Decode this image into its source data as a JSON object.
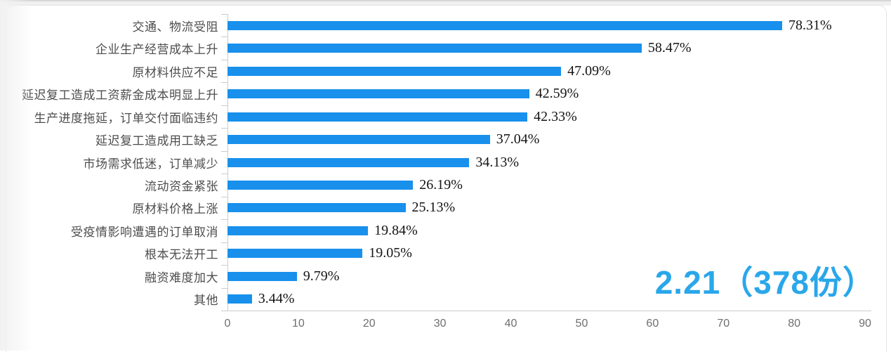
{
  "chart_data": {
    "type": "bar",
    "orientation": "horizontal",
    "title": "",
    "xlabel": "",
    "ylabel": "",
    "xlim": [
      0,
      90
    ],
    "x_ticks": [
      0,
      10,
      20,
      30,
      40,
      50,
      60,
      70,
      80,
      90
    ],
    "grid": false,
    "legend": "none",
    "categories": [
      "交通、物流受阻",
      "企业生产经营成本上升",
      "原材料供应不足",
      "延迟复工造成工资薪金成本明显上升",
      "生产进度拖延，订单交付面临违约",
      "延迟复工造成用工缺乏",
      "市场需求低迷，订单减少",
      "流动资金紧张",
      "原材料价格上涨",
      "受疫情影响遭遇的订单取消",
      "根本无法开工",
      "融资难度加大",
      "其他"
    ],
    "values": [
      78.31,
      58.47,
      47.09,
      42.59,
      42.33,
      37.04,
      34.13,
      26.19,
      25.13,
      19.84,
      19.05,
      9.79,
      3.44
    ],
    "value_labels": [
      "78.31%",
      "58.47%",
      "47.09%",
      "42.59%",
      "42.33%",
      "37.04%",
      "34.13%",
      "26.19%",
      "25.13%",
      "19.84%",
      "19.05%",
      "9.79%",
      "3.44%"
    ],
    "bar_color": "#1890ec",
    "annotation": {
      "text": "2.21（378份）",
      "color": "#2aa7ea"
    }
  }
}
